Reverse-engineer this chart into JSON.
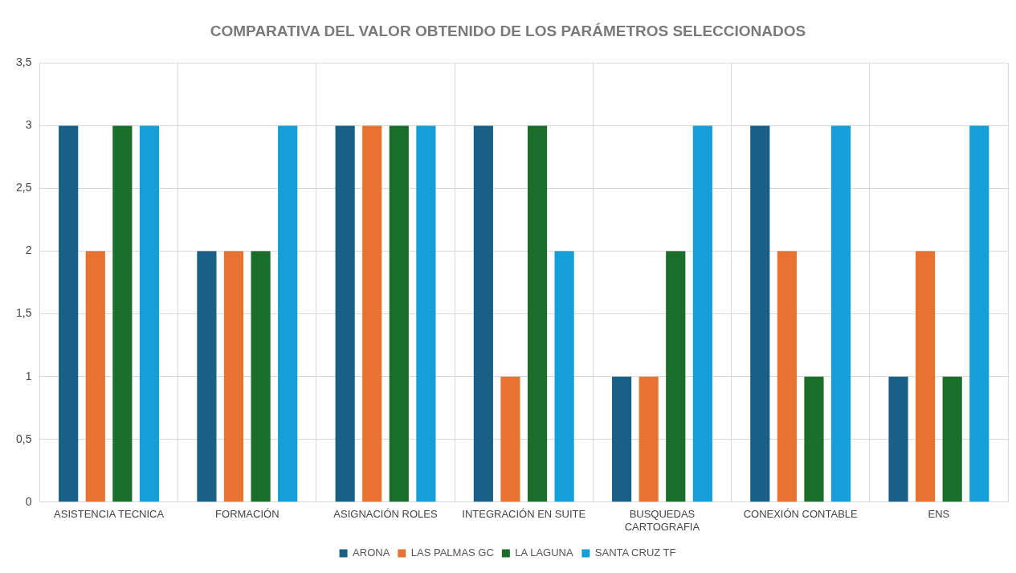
{
  "chart_data": {
    "type": "bar",
    "title": "COMPARATIVA DEL VALOR OBTENIDO DE LOS PARÁMETROS SELECCIONADOS",
    "categories": [
      "ASISTENCIA TECNICA",
      "FORMACIÓN",
      "ASIGNACIÓN ROLES",
      "INTEGRACIÓN EN SUITE",
      "BUSQUEDAS CARTOGRAFIA",
      "CONEXIÓN CONTABLE",
      "ENS"
    ],
    "series": [
      {
        "name": "ARONA",
        "color": "#1a5f86",
        "values": [
          3,
          2,
          3,
          3,
          1,
          3,
          1
        ]
      },
      {
        "name": "LAS PALMAS GC",
        "color": "#e8722f",
        "values": [
          2,
          2,
          3,
          1,
          1,
          2,
          2
        ]
      },
      {
        "name": "LA LAGUNA",
        "color": "#1b6e2a",
        "values": [
          3,
          2,
          3,
          3,
          2,
          1,
          1
        ]
      },
      {
        "name": "SANTA CRUZ TF",
        "color": "#159fd8",
        "values": [
          3,
          3,
          3,
          2,
          3,
          3,
          3
        ]
      }
    ],
    "ylim": [
      0,
      3.5
    ],
    "yticks": [
      0,
      {
        "value": 0.5,
        "label": "0,5"
      },
      1,
      {
        "value": 1.5,
        "label": "1,5"
      },
      2,
      {
        "value": 2.5,
        "label": "2,5"
      },
      3,
      {
        "value": 3.5,
        "label": "3,5"
      }
    ],
    "grid": true,
    "legend": "bottom"
  }
}
